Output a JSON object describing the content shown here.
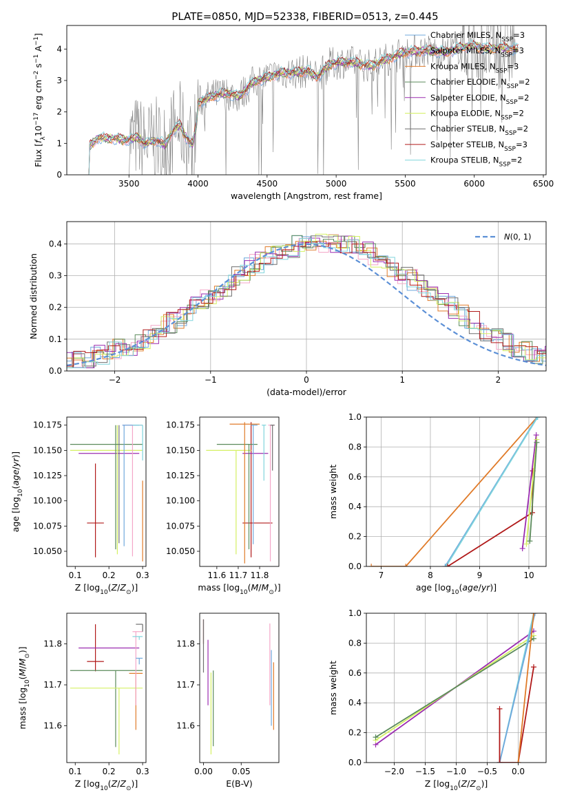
{
  "figure": {
    "title": "PLATE=0850, MJD=52338, FIBERID=0513, z=0.445"
  },
  "colors": {
    "Chabrier MILES": "#6fa8dc",
    "Salpeter MILES": "#f4a6c8",
    "Kroupa MILES": "#e07a28",
    "Chabrier ELODIE": "#5a8a5a",
    "Salpeter ELODIE": "#9a2bb0",
    "Kroupa ELODIE": "#d4f062",
    "Chabrier STELIB": "#6e6e6e",
    "Salpeter STELIB": "#b01818",
    "Kroupa STELIB": "#7fd4dc",
    "data": "#808080",
    "normal": "#5b8fd6"
  },
  "chart_data": [
    {
      "id": "spectrum",
      "type": "line",
      "title": "PLATE=0850, MJD=52338, FIBERID=0513, z=0.445",
      "xlabel": "wavelength [Angstrom, rest frame]",
      "ylabel": "Flux [f_λ 10^-17 erg cm^-2 s^-1 A^-1]",
      "xlim": [
        3050,
        6520
      ],
      "ylim": [
        0,
        4.75
      ],
      "xticks": [
        3500,
        4000,
        4500,
        5000,
        5500,
        6000,
        6500
      ],
      "yticks": [
        0,
        1,
        2,
        3,
        4
      ],
      "legend_position": "top-right",
      "legend": [
        {
          "name": "Chabrier MILES",
          "nssp": "3"
        },
        {
          "name": "Salpeter MILES",
          "nssp": "3"
        },
        {
          "name": "Kroupa MILES",
          "nssp": "3"
        },
        {
          "name": "Chabrier ELODIE",
          "nssp": "2"
        },
        {
          "name": "Salpeter ELODIE",
          "nssp": "2"
        },
        {
          "name": "Kroupa ELODIE",
          "nssp": "2"
        },
        {
          "name": "Chabrier STELIB",
          "nssp": "2"
        },
        {
          "name": "Salpeter STELIB",
          "nssp": "3"
        },
        {
          "name": "Kroupa STELIB",
          "nssp": "2"
        }
      ],
      "model_continuum": [
        [
          3210,
          0
        ],
        [
          3215,
          0.9
        ],
        [
          3280,
          1.2
        ],
        [
          3330,
          1.15
        ],
        [
          3400,
          1.15
        ],
        [
          3480,
          1.1
        ],
        [
          3560,
          1.2
        ],
        [
          3620,
          0.98
        ],
        [
          3700,
          1.1
        ],
        [
          3760,
          0.95
        ],
        [
          3820,
          1.4
        ],
        [
          3870,
          1.6
        ],
        [
          3900,
          1.3
        ],
        [
          3930,
          1.1
        ],
        [
          3960,
          0.95
        ],
        [
          3990,
          1.6
        ],
        [
          4000,
          2.3
        ],
        [
          4100,
          2.5
        ],
        [
          4200,
          2.6
        ],
        [
          4300,
          2.5
        ],
        [
          4400,
          2.95
        ],
        [
          4500,
          3.1
        ],
        [
          4600,
          3.25
        ],
        [
          4700,
          3.25
        ],
        [
          4800,
          3.3
        ],
        [
          4860,
          3.1
        ],
        [
          4950,
          3.5
        ],
        [
          5050,
          3.6
        ],
        [
          5150,
          3.55
        ],
        [
          5250,
          3.45
        ],
        [
          5350,
          3.65
        ],
        [
          5500,
          3.9
        ],
        [
          5650,
          3.95
        ],
        [
          5800,
          3.9
        ],
        [
          5900,
          4.05
        ],
        [
          6000,
          4.1
        ],
        [
          6100,
          4.0
        ],
        [
          6200,
          4.05
        ],
        [
          6300,
          4.0
        ]
      ]
    },
    {
      "id": "residuals",
      "type": "line",
      "xlabel": "(data-model)/error",
      "ylabel": "Normed distribution",
      "xlim": [
        -2.5,
        2.5
      ],
      "ylim": [
        0,
        0.47
      ],
      "xticks": [
        -2,
        -1,
        0,
        1,
        2
      ],
      "yticks": [
        0.0,
        0.1,
        0.2,
        0.3,
        0.4
      ],
      "grid": true,
      "legend_position": "top-right",
      "legend_label": "N(0,1)"
    },
    {
      "id": "age_vs_Z",
      "type": "scatter",
      "xlabel": "Z [log10(Z/Z☉)]",
      "ylabel": "age  [log10(age/yr)]",
      "xlim": [
        0.075,
        0.31
      ],
      "ylim": [
        10.035,
        10.183
      ],
      "xticks": [
        0.1,
        0.2,
        0.3
      ],
      "yticks": [
        10.05,
        10.075,
        10.1,
        10.125,
        10.15,
        10.175
      ],
      "points": [
        {
          "model": "Salpeter STELIB",
          "x": 0.16,
          "y": 10.078,
          "xerr": [
            0.135,
            0.185
          ],
          "yerr": [
            10.044,
            10.137
          ]
        },
        {
          "model": "Salpeter ELODIE",
          "x": 0.2,
          "y": 10.147,
          "xerr": [
            0.11,
            0.29
          ],
          "yerr": [
            10.147,
            10.147
          ]
        },
        {
          "model": "Kroupa ELODIE",
          "x": 0.225,
          "y": 10.15,
          "xerr": [
            0.085,
            0.3
          ],
          "yerr": [
            10.047,
            10.175
          ]
        },
        {
          "model": "Chabrier ELODIE",
          "x": 0.22,
          "y": 10.156,
          "xerr": [
            0.085,
            0.3
          ],
          "yerr": [
            10.052,
            10.175
          ]
        },
        {
          "model": "Chabrier STELIB",
          "x": 0.23,
          "y": 10.16,
          "xerr": [
            0.23,
            0.23
          ],
          "yerr": [
            10.058,
            10.175
          ]
        },
        {
          "model": "Salpeter MILES",
          "x": 0.27,
          "y": 10.175,
          "xerr": [
            0.24,
            0.3
          ],
          "yerr": [
            10.045,
            10.175
          ]
        },
        {
          "model": "Chabrier MILES",
          "x": 0.245,
          "y": 10.175,
          "xerr": [
            0.24,
            0.29
          ],
          "yerr": [
            10.055,
            10.175
          ]
        },
        {
          "model": "Kroupa MILES",
          "x": 0.3,
          "y": 10.175,
          "xerr": [
            0.3,
            0.3
          ],
          "yerr": [
            10.04,
            10.12
          ]
        },
        {
          "model": "Kroupa STELIB",
          "x": 0.3,
          "y": 10.175,
          "xerr": [
            0.27,
            0.3
          ],
          "yerr": [
            10.14,
            10.175
          ]
        }
      ]
    },
    {
      "id": "age_vs_mass",
      "type": "scatter",
      "xlabel": "mass [log10(M/M☉)]",
      "ylabel": "",
      "xlim": [
        11.52,
        11.89
      ],
      "ylim": [
        10.035,
        10.183
      ],
      "xticks": [
        11.6,
        11.7,
        11.8
      ],
      "yticks": [
        10.05,
        10.075,
        10.1,
        10.125,
        10.15,
        10.175
      ],
      "points": [
        {
          "model": "Salpeter STELIB",
          "x": 11.76,
          "y": 10.078,
          "xerr": [
            11.72,
            11.86
          ],
          "yerr": [
            10.044,
            10.178
          ]
        },
        {
          "model": "Salpeter ELODIE",
          "x": 11.79,
          "y": 10.147,
          "xerr": [
            11.72,
            11.84
          ],
          "yerr": [
            10.147,
            10.147
          ]
        },
        {
          "model": "Kroupa ELODIE",
          "x": 11.69,
          "y": 10.15,
          "xerr": [
            11.55,
            11.76
          ],
          "yerr": [
            10.047,
            10.15
          ]
        },
        {
          "model": "Chabrier ELODIE",
          "x": 11.75,
          "y": 10.156,
          "xerr": [
            11.6,
            11.79
          ],
          "yerr": [
            10.052,
            10.156
          ]
        },
        {
          "model": "Kroupa MILES",
          "x": 11.73,
          "y": 10.176,
          "xerr": [
            11.66,
            11.8
          ],
          "yerr": [
            10.038,
            10.178
          ]
        },
        {
          "model": "Chabrier MILES",
          "x": 11.77,
          "y": 10.175,
          "xerr": [
            11.76,
            11.79
          ],
          "yerr": [
            10.057,
            10.175
          ]
        },
        {
          "model": "Salpeter MILES",
          "x": 11.85,
          "y": 10.175,
          "xerr": [
            11.84,
            11.87
          ],
          "yerr": [
            10.04,
            10.175
          ]
        },
        {
          "model": "Chabrier STELIB",
          "x": 11.86,
          "y": 10.175,
          "xerr": [
            11.85,
            11.87
          ],
          "yerr": [
            10.13,
            10.175
          ]
        },
        {
          "model": "Kroupa STELIB",
          "x": 11.82,
          "y": 10.175,
          "xerr": [
            11.81,
            11.83
          ],
          "yerr": [
            10.12,
            10.175
          ]
        }
      ]
    },
    {
      "id": "mw_vs_age",
      "type": "line",
      "xlabel": "age  [log10(age/yr)]",
      "ylabel": "mass weight",
      "xlim": [
        6.7,
        10.35
      ],
      "ylim": [
        0,
        1
      ],
      "xticks": [
        7,
        8,
        9,
        10
      ],
      "yticks": [
        0.0,
        0.2,
        0.4,
        0.6,
        0.8,
        1.0
      ],
      "grid": true,
      "series": [
        {
          "model": "Kroupa MILES",
          "points": [
            [
              6.8,
              0
            ],
            [
              7.5,
              0
            ],
            [
              10.17,
              1.0
            ]
          ]
        },
        {
          "model": "Chabrier MILES",
          "points": [
            [
              8.3,
              0
            ],
            [
              10.17,
              1.0
            ]
          ]
        },
        {
          "model": "Kroupa STELIB",
          "points": [
            [
              8.32,
              0
            ],
            [
              10.18,
              1.0
            ]
          ]
        },
        {
          "model": "Salpeter STELIB",
          "points": [
            [
              8.35,
              0
            ],
            [
              10.07,
              0.36
            ],
            [
              10.08,
              0.64
            ]
          ]
        },
        {
          "model": "Salpeter ELODIE",
          "points": [
            [
              9.87,
              0.12
            ],
            [
              10.15,
              0.88
            ]
          ]
        },
        {
          "model": "Kroupa ELODIE",
          "points": [
            [
              9.95,
              0.15
            ],
            [
              10.16,
              0.85
            ]
          ]
        },
        {
          "model": "Chabrier ELODIE",
          "points": [
            [
              10.02,
              0.17
            ],
            [
              10.16,
              0.83
            ]
          ]
        }
      ]
    },
    {
      "id": "mass_vs_Z",
      "type": "scatter",
      "xlabel": "Z [log10(Z/Z☉)]",
      "ylabel": "mass [log10(M/M☉)]",
      "xlim": [
        0.075,
        0.31
      ],
      "ylim": [
        11.51,
        11.875
      ],
      "xticks": [
        0.1,
        0.2,
        0.3
      ],
      "yticks": [
        11.6,
        11.7,
        11.8
      ],
      "points": [
        {
          "model": "Salpeter STELIB",
          "x": 0.16,
          "y": 11.757,
          "xerr": [
            0.135,
            0.185
          ],
          "yerr": [
            11.733,
            11.848
          ]
        },
        {
          "model": "Salpeter ELODIE",
          "x": 0.2,
          "y": 11.79,
          "xerr": [
            0.11,
            0.29
          ],
          "yerr": [
            11.79,
            11.79
          ]
        },
        {
          "model": "Chabrier ELODIE",
          "x": 0.22,
          "y": 11.735,
          "xerr": [
            0.085,
            0.3
          ],
          "yerr": [
            11.548,
            11.735
          ]
        },
        {
          "model": "Kroupa ELODIE",
          "x": 0.23,
          "y": 11.692,
          "xerr": [
            0.085,
            0.3
          ],
          "yerr": [
            11.53,
            11.692
          ]
        },
        {
          "model": "Kroupa MILES",
          "x": 0.28,
          "y": 11.728,
          "xerr": [
            0.26,
            0.3
          ],
          "yerr": [
            11.59,
            11.728
          ]
        },
        {
          "model": "Salpeter MILES",
          "x": 0.28,
          "y": 11.83,
          "xerr": [
            0.27,
            0.3
          ],
          "yerr": [
            11.65,
            11.83
          ]
        },
        {
          "model": "Chabrier MILES",
          "x": 0.29,
          "y": 11.765,
          "xerr": [
            0.28,
            0.3
          ],
          "yerr": [
            11.75,
            11.765
          ]
        },
        {
          "model": "Kroupa STELIB",
          "x": 0.29,
          "y": 11.818,
          "xerr": [
            0.27,
            0.3
          ],
          "yerr": [
            11.81,
            11.818
          ]
        },
        {
          "model": "Chabrier STELIB",
          "x": 0.3,
          "y": 11.848,
          "xerr": [
            0.28,
            0.3
          ],
          "yerr": [
            11.83,
            11.848
          ]
        }
      ]
    },
    {
      "id": "mass_vs_ebv",
      "type": "scatter",
      "xlabel": "E(B-V)",
      "ylabel": "",
      "xlim": [
        -0.005,
        0.1
      ],
      "ylim": [
        11.51,
        11.875
      ],
      "xticks": [
        0.0,
        0.05
      ],
      "yticks": [
        11.6,
        11.7,
        11.8
      ],
      "points": [
        {
          "model": "Salpeter STELIB",
          "x": 0.0,
          "y": 11.83,
          "yerr": [
            11.8,
            11.86
          ]
        },
        {
          "model": "Chabrier STELIB",
          "x": 0.0,
          "y": 11.8,
          "yerr": [
            11.73,
            11.86
          ]
        },
        {
          "model": "Salpeter ELODIE",
          "x": 0.006,
          "y": 11.73,
          "yerr": [
            11.65,
            11.81
          ]
        },
        {
          "model": "Kroupa ELODIE",
          "x": 0.01,
          "y": 11.63,
          "yerr": [
            11.53,
            11.73
          ]
        },
        {
          "model": "Chabrier ELODIE",
          "x": 0.013,
          "y": 11.64,
          "yerr": [
            11.55,
            11.735
          ]
        },
        {
          "model": "Salpeter MILES",
          "x": 0.088,
          "y": 11.75,
          "yerr": [
            11.65,
            11.85
          ]
        },
        {
          "model": "Chabrier MILES",
          "x": 0.09,
          "y": 11.7,
          "yerr": [
            11.6,
            11.785
          ]
        },
        {
          "model": "Kroupa MILES",
          "x": 0.093,
          "y": 11.67,
          "yerr": [
            11.59,
            11.755
          ]
        }
      ]
    },
    {
      "id": "mw_vs_Z",
      "type": "line",
      "xlabel": "Z [log10(Z/Z☉)]",
      "ylabel": "mass weight",
      "xlim": [
        -2.45,
        0.45
      ],
      "ylim": [
        0,
        1
      ],
      "xticks": [
        -2.0,
        -1.5,
        -1.0,
        -0.5,
        0.0
      ],
      "yticks": [
        0.0,
        0.2,
        0.4,
        0.6,
        0.8,
        1.0
      ],
      "grid": true,
      "series": [
        {
          "model": "Salpeter ELODIE",
          "points": [
            [
              -2.3,
              0.12
            ],
            [
              0.25,
              0.88
            ]
          ]
        },
        {
          "model": "Kroupa ELODIE",
          "points": [
            [
              -2.3,
              0.15
            ],
            [
              0.25,
              0.85
            ]
          ]
        },
        {
          "model": "Chabrier ELODIE",
          "points": [
            [
              -2.3,
              0.17
            ],
            [
              0.25,
              0.83
            ]
          ]
        },
        {
          "model": "Kroupa STELIB",
          "points": [
            [
              -0.3,
              0
            ],
            [
              0.25,
              1.0
            ]
          ]
        },
        {
          "model": "Chabrier MILES",
          "points": [
            [
              -0.3,
              0
            ],
            [
              0.27,
              1.0
            ]
          ]
        },
        {
          "model": "Salpeter STELIB",
          "points": [
            [
              -0.3,
              0.36
            ],
            [
              -0.3,
              0
            ],
            [
              0.0,
              0
            ],
            [
              0.25,
              0.64
            ]
          ]
        },
        {
          "model": "Kroupa MILES",
          "points": [
            [
              0.0,
              0
            ],
            [
              0.25,
              1.0
            ]
          ]
        }
      ]
    }
  ]
}
